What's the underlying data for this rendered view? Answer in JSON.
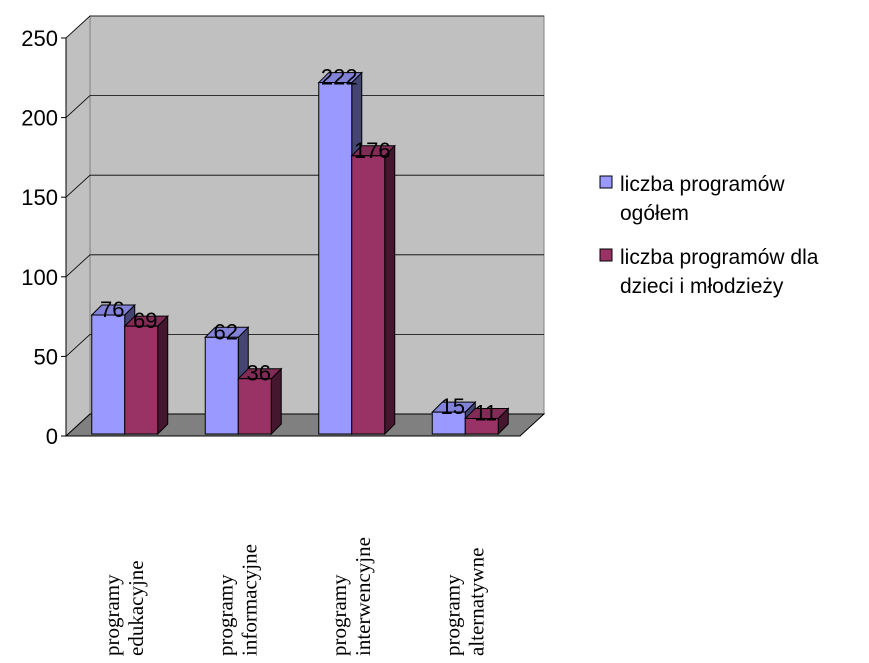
{
  "chart_data": {
    "type": "bar",
    "categories": [
      [
        "programy",
        "edukacyjne"
      ],
      [
        "programy",
        "informacyjne"
      ],
      [
        "programy",
        "interwencyjne"
      ],
      [
        "programy",
        "alternatywne"
      ]
    ],
    "series": [
      {
        "name": "liczba programów ogółem",
        "values": [
          76,
          62,
          222,
          15
        ],
        "color": "#9999ff"
      },
      {
        "name": "liczba programów dla dzieci i młodzieży",
        "values": [
          69,
          36,
          176,
          11
        ],
        "color": "#993366"
      }
    ],
    "legend_lines": [
      [
        "liczba programów",
        "ogółem"
      ],
      [
        "liczba programów dla",
        "dzieci i młodzieży"
      ]
    ],
    "ylim": [
      0,
      250
    ],
    "yticks": [
      0,
      50,
      100,
      150,
      200,
      250
    ],
    "grid": true,
    "legend_position": "right",
    "style": "3d-clustered",
    "wall_color": "#c0c0c0",
    "floor_color": "#808080"
  }
}
